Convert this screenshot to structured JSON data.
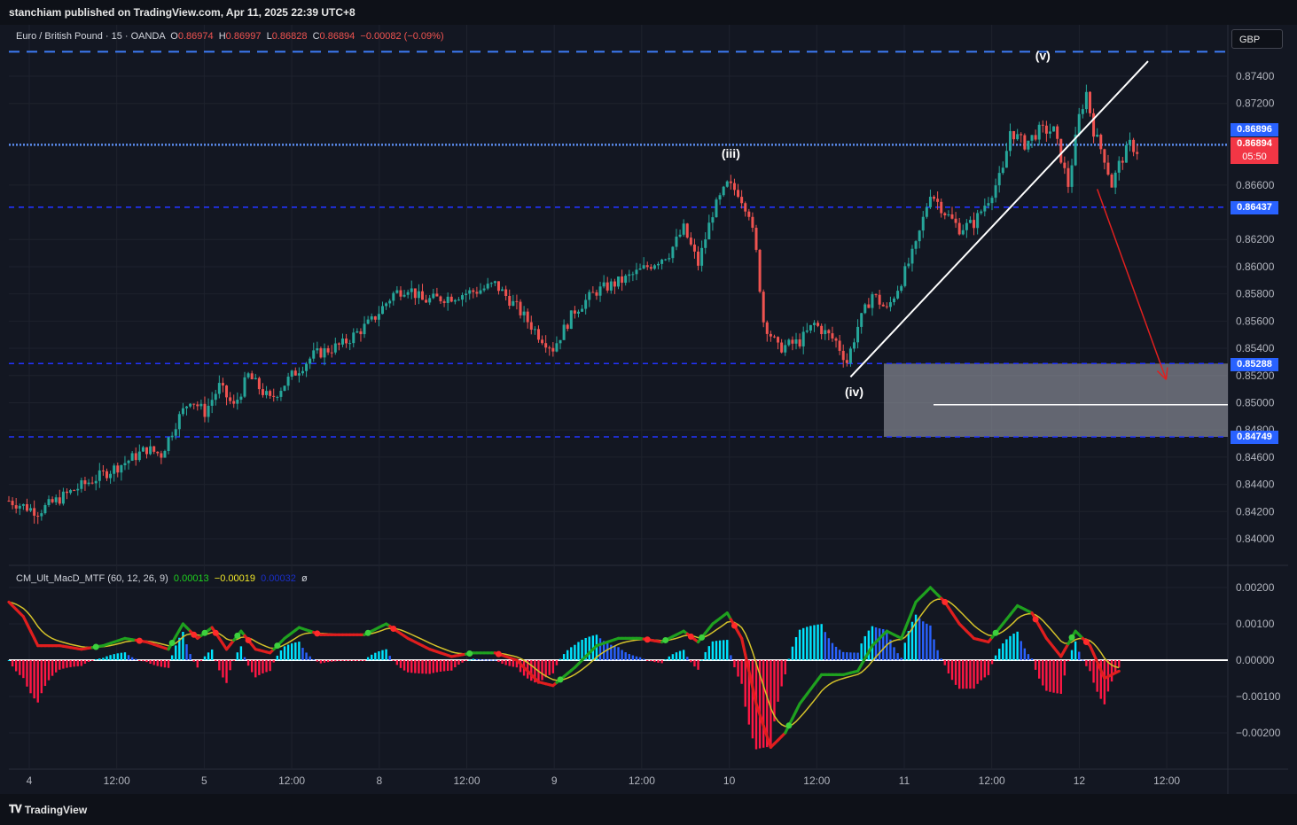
{
  "header": {
    "published": "stanchiam published on TradingView.com, Apr 11, 2025 22:39 UTC+8"
  },
  "symbol_legend": {
    "title": "Euro / British Pound · 15 · OANDA",
    "o_label": "O",
    "o": "0.86974",
    "h_label": "H",
    "h": "0.86997",
    "l_label": "L",
    "l": "0.86828",
    "c_label": "C",
    "c": "0.86894",
    "change": "−0.00082 (−0.09%)"
  },
  "currency_button": "GBP",
  "macd_legend": {
    "name": "CM_Ult_MacD_MTF (60, 12, 26, 9)",
    "v1": "0.00013",
    "v2": "−0.00019",
    "v3": "0.00032",
    "icon": "ø"
  },
  "badges": {
    "level_top": "0.86896",
    "last_price": "0.86894",
    "countdown": "05:50",
    "level_864": "0.86437",
    "level_852": "0.85288",
    "level_847": "0.84749"
  },
  "colors": {
    "background": "#131722",
    "up": "#26a69a",
    "down": "#ef5350",
    "dashed_level": "#2962ff",
    "dotted_level": "#5b8def",
    "badge_blue": "#2962ff",
    "badge_red": "#f23645",
    "macd_green": "#1fa11f",
    "macd_red": "#e01e1e",
    "signal": "#d4c22a",
    "hist_up": "#00e5ff",
    "hist_up_fading": "#2962ff",
    "hist_down": "#ff1744"
  },
  "chart_data": [
    {
      "type": "candlestick",
      "title": "Euro / British Pound · 15 · OANDA",
      "ylim": [
        0.8388,
        0.8777
      ],
      "y_ticks": [
        "0.87400",
        "0.87200",
        "0.86600",
        "0.86200",
        "0.86000",
        "0.85800",
        "0.85600",
        "0.85400",
        "0.85200",
        "0.85000",
        "0.84800",
        "0.84600",
        "0.84400",
        "0.84200",
        "0.84000"
      ],
      "x_ticks": [
        "4",
        "12:00",
        "5",
        "12:00",
        "8",
        "12:00",
        "9",
        "12:00",
        "10",
        "12:00",
        "11",
        "12:00",
        "12",
        "12:00"
      ],
      "price_path": [
        {
          "t": 0,
          "p": 0.8428
        },
        {
          "t": 8,
          "p": 0.842
        },
        {
          "t": 18,
          "p": 0.8436
        },
        {
          "t": 32,
          "p": 0.8456
        },
        {
          "t": 38,
          "p": 0.8466
        },
        {
          "t": 42,
          "p": 0.8462
        },
        {
          "t": 46,
          "p": 0.8485
        },
        {
          "t": 50,
          "p": 0.8503
        },
        {
          "t": 54,
          "p": 0.8493
        },
        {
          "t": 58,
          "p": 0.8512
        },
        {
          "t": 62,
          "p": 0.8497
        },
        {
          "t": 66,
          "p": 0.852
        },
        {
          "t": 72,
          "p": 0.8502
        },
        {
          "t": 78,
          "p": 0.852
        },
        {
          "t": 84,
          "p": 0.8535
        },
        {
          "t": 92,
          "p": 0.8543
        },
        {
          "t": 100,
          "p": 0.856
        },
        {
          "t": 106,
          "p": 0.858
        },
        {
          "t": 110,
          "p": 0.8585
        },
        {
          "t": 114,
          "p": 0.8575
        },
        {
          "t": 122,
          "p": 0.8578
        },
        {
          "t": 130,
          "p": 0.8583
        },
        {
          "t": 134,
          "p": 0.8587
        },
        {
          "t": 140,
          "p": 0.857
        },
        {
          "t": 146,
          "p": 0.855
        },
        {
          "t": 150,
          "p": 0.854
        },
        {
          "t": 156,
          "p": 0.8568
        },
        {
          "t": 162,
          "p": 0.8582
        },
        {
          "t": 170,
          "p": 0.8591
        },
        {
          "t": 176,
          "p": 0.86
        },
        {
          "t": 182,
          "p": 0.861
        },
        {
          "t": 186,
          "p": 0.8628
        },
        {
          "t": 190,
          "p": 0.8602
        },
        {
          "t": 194,
          "p": 0.864
        },
        {
          "t": 198,
          "p": 0.866
        },
        {
          "t": 201,
          "p": 0.8655
        },
        {
          "t": 204,
          "p": 0.864
        },
        {
          "t": 206,
          "p": 0.861
        },
        {
          "t": 208,
          "p": 0.856
        },
        {
          "t": 212,
          "p": 0.854
        },
        {
          "t": 218,
          "p": 0.8545
        },
        {
          "t": 222,
          "p": 0.8558
        },
        {
          "t": 228,
          "p": 0.8545
        },
        {
          "t": 231,
          "p": 0.853
        },
        {
          "t": 234,
          "p": 0.8556
        },
        {
          "t": 238,
          "p": 0.858
        },
        {
          "t": 242,
          "p": 0.8568
        },
        {
          "t": 246,
          "p": 0.859
        },
        {
          "t": 250,
          "p": 0.8615
        },
        {
          "t": 254,
          "p": 0.8655
        },
        {
          "t": 258,
          "p": 0.864
        },
        {
          "t": 262,
          "p": 0.8628
        },
        {
          "t": 266,
          "p": 0.8632
        },
        {
          "t": 270,
          "p": 0.865
        },
        {
          "t": 274,
          "p": 0.867
        },
        {
          "t": 276,
          "p": 0.87
        },
        {
          "t": 280,
          "p": 0.869
        },
        {
          "t": 284,
          "p": 0.87
        },
        {
          "t": 288,
          "p": 0.87
        },
        {
          "t": 290,
          "p": 0.868
        },
        {
          "t": 292,
          "p": 0.866
        },
        {
          "t": 295,
          "p": 0.871
        },
        {
          "t": 297,
          "p": 0.8728
        },
        {
          "t": 299,
          "p": 0.87
        },
        {
          "t": 302,
          "p": 0.868
        },
        {
          "t": 304,
          "p": 0.866
        },
        {
          "t": 306,
          "p": 0.8675
        },
        {
          "t": 309,
          "p": 0.869
        },
        {
          "t": 311,
          "p": 0.8685
        }
      ],
      "horizontal_levels": [
        0.8758,
        0.86896,
        0.86437,
        0.85288,
        0.84749
      ],
      "target_zone": [
        0.84749,
        0.85288
      ],
      "target_line": 0.84985,
      "trendline": [
        {
          "t": 232,
          "p": 0.8519
        },
        {
          "t": 314,
          "p": 0.8751
        }
      ],
      "projection_arrow": [
        {
          "t": 300,
          "p": 0.8657
        },
        {
          "t": 319,
          "p": 0.8517
        }
      ],
      "wave_labels": [
        {
          "label": "(iii)",
          "t": 199,
          "p": 0.868
        },
        {
          "label": "(iv)",
          "t": 233,
          "p": 0.8505
        },
        {
          "label": "(v)",
          "t": 285,
          "p": 0.8752
        }
      ]
    },
    {
      "type": "line",
      "title": "CM_Ult_MacD_MTF (60, 12, 26, 9)",
      "ylim": [
        -0.003,
        0.0025
      ],
      "y_ticks": [
        "0.00200",
        "0.00100",
        "0.00000",
        "−0.00100",
        "−0.00200"
      ],
      "macd_path": [
        {
          "t": 0,
          "v": 0.0016
        },
        {
          "t": 4,
          "v": 0.0012
        },
        {
          "t": 8,
          "v": 0.0004
        },
        {
          "t": 14,
          "v": 0.0004
        },
        {
          "t": 20,
          "v": 0.0003
        },
        {
          "t": 26,
          "v": 0.0004
        },
        {
          "t": 32,
          "v": 0.0006
        },
        {
          "t": 38,
          "v": 0.0005
        },
        {
          "t": 44,
          "v": 0.0003
        },
        {
          "t": 48,
          "v": 0.001
        },
        {
          "t": 52,
          "v": 0.0006
        },
        {
          "t": 56,
          "v": 0.0009
        },
        {
          "t": 60,
          "v": 0.0003
        },
        {
          "t": 64,
          "v": 0.0008
        },
        {
          "t": 68,
          "v": 0.0003
        },
        {
          "t": 72,
          "v": 0.0002
        },
        {
          "t": 76,
          "v": 0.0006
        },
        {
          "t": 80,
          "v": 0.0009
        },
        {
          "t": 86,
          "v": 0.0007
        },
        {
          "t": 92,
          "v": 0.0007
        },
        {
          "t": 98,
          "v": 0.0007
        },
        {
          "t": 104,
          "v": 0.001
        },
        {
          "t": 110,
          "v": 0.0006
        },
        {
          "t": 116,
          "v": 0.0003
        },
        {
          "t": 122,
          "v": 0.0001
        },
        {
          "t": 128,
          "v": 0.0002
        },
        {
          "t": 134,
          "v": 0.0002
        },
        {
          "t": 140,
          "v": 0.0
        },
        {
          "t": 146,
          "v": -0.0006
        },
        {
          "t": 150,
          "v": -0.0007
        },
        {
          "t": 156,
          "v": -0.0002
        },
        {
          "t": 162,
          "v": 0.0004
        },
        {
          "t": 168,
          "v": 0.0006
        },
        {
          "t": 174,
          "v": 0.0006
        },
        {
          "t": 180,
          "v": 0.0005
        },
        {
          "t": 186,
          "v": 0.0008
        },
        {
          "t": 190,
          "v": 0.0005
        },
        {
          "t": 194,
          "v": 0.001
        },
        {
          "t": 198,
          "v": 0.0013
        },
        {
          "t": 202,
          "v": 0.0006
        },
        {
          "t": 206,
          "v": -0.0012
        },
        {
          "t": 210,
          "v": -0.0024
        },
        {
          "t": 214,
          "v": -0.002
        },
        {
          "t": 218,
          "v": -0.0012
        },
        {
          "t": 224,
          "v": -0.0004
        },
        {
          "t": 230,
          "v": -0.0004
        },
        {
          "t": 234,
          "v": -0.0003
        },
        {
          "t": 238,
          "v": 0.0004
        },
        {
          "t": 242,
          "v": 0.0008
        },
        {
          "t": 246,
          "v": 0.0006
        },
        {
          "t": 250,
          "v": 0.0016
        },
        {
          "t": 254,
          "v": 0.002
        },
        {
          "t": 258,
          "v": 0.0016
        },
        {
          "t": 262,
          "v": 0.001
        },
        {
          "t": 266,
          "v": 0.0006
        },
        {
          "t": 270,
          "v": 0.0005
        },
        {
          "t": 274,
          "v": 0.001
        },
        {
          "t": 278,
          "v": 0.0015
        },
        {
          "t": 282,
          "v": 0.0013
        },
        {
          "t": 286,
          "v": 0.0006
        },
        {
          "t": 290,
          "v": 0.0001
        },
        {
          "t": 294,
          "v": 0.0008
        },
        {
          "t": 298,
          "v": 0.0004
        },
        {
          "t": 302,
          "v": -0.0005
        },
        {
          "t": 306,
          "v": -0.0003
        }
      ]
    }
  ]
}
